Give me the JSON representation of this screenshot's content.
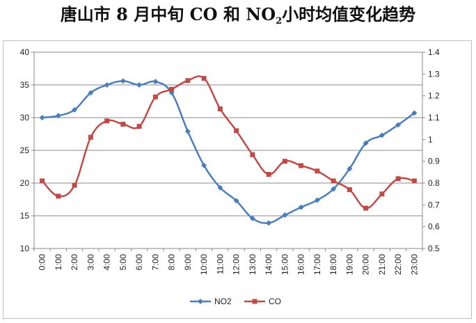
{
  "title": {
    "main": "唐山市 8 月中旬 CO 和 NO",
    "sub": "2",
    "suffix": "小时均值变化趋势"
  },
  "chart_data": {
    "type": "line",
    "categories": [
      "0:00",
      "1:00",
      "2:00",
      "3:00",
      "4:00",
      "5:00",
      "6:00",
      "7:00",
      "8:00",
      "9:00",
      "10:00",
      "11:00",
      "12:00",
      "13:00",
      "14:00",
      "15:00",
      "16:00",
      "17:00",
      "18:00",
      "19:00",
      "20:00",
      "21:00",
      "22:00",
      "23:00"
    ],
    "series": [
      {
        "name": "NO2",
        "axis": "left",
        "color": "#4a7ebb",
        "marker": "diamond",
        "values": [
          30.0,
          30.3,
          31.2,
          33.8,
          35.0,
          35.6,
          35.0,
          35.5,
          33.8,
          27.9,
          22.7,
          19.3,
          17.3,
          14.6,
          13.9,
          15.1,
          16.3,
          17.4,
          19.1,
          22.2,
          26.1,
          27.3,
          28.9,
          30.7
        ]
      },
      {
        "name": "CO",
        "axis": "right",
        "color": "#be4b48",
        "marker": "square",
        "values": [
          0.81,
          0.74,
          0.79,
          1.01,
          1.085,
          1.07,
          1.06,
          1.195,
          1.23,
          1.27,
          1.28,
          1.14,
          1.04,
          0.93,
          0.84,
          0.9,
          0.88,
          0.855,
          0.81,
          0.77,
          0.685,
          0.75,
          0.82,
          0.81
        ]
      }
    ],
    "yleft": {
      "ylim": [
        10,
        40
      ],
      "ticks": [
        "10",
        "15",
        "20",
        "25",
        "30",
        "35",
        "40"
      ]
    },
    "yright": {
      "ylim": [
        0.5,
        1.4
      ],
      "ticks": [
        "0.5",
        "0.6",
        "0.7",
        "0.8",
        "0.9",
        "1",
        "1.1",
        "1.2",
        "1.3",
        "1.4"
      ]
    },
    "grid": true,
    "legend": "bottom-center",
    "gridColor": "#888888"
  }
}
